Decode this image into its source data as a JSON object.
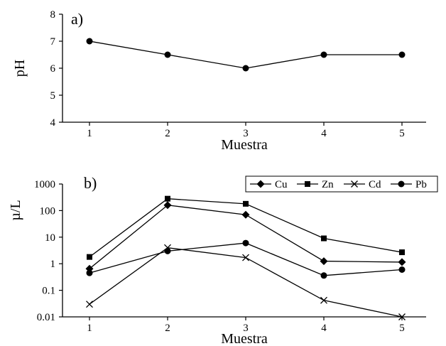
{
  "chart_data": [
    {
      "type": "line",
      "panel_label": "a)",
      "xlabel": "Muestra",
      "ylabel": "pH",
      "x": [
        1,
        2,
        3,
        4,
        5
      ],
      "ylim": [
        4,
        8
      ],
      "yticks": [
        4,
        5,
        6,
        7,
        8
      ],
      "grid": false,
      "series": [
        {
          "name": "",
          "marker": "circle",
          "values": [
            7.0,
            6.5,
            6.0,
            6.5,
            6.5
          ]
        }
      ]
    },
    {
      "type": "line",
      "panel_label": "b)",
      "xlabel": "Muestra",
      "ylabel": "µ/L",
      "x": [
        1,
        2,
        3,
        4,
        5
      ],
      "yscale": "log",
      "ylim": [
        0.01,
        1000
      ],
      "yticks": [
        0.01,
        0.1,
        1,
        10,
        100,
        1000
      ],
      "ytick_labels": [
        "0.01",
        "0.1",
        "1",
        "10",
        "100",
        "1000"
      ],
      "grid": false,
      "legend_position": "top-right",
      "series": [
        {
          "name": "Cu",
          "marker": "diamond",
          "values": [
            0.65,
            160,
            70,
            1.25,
            1.15
          ]
        },
        {
          "name": "Zn",
          "marker": "square",
          "values": [
            1.8,
            280,
            180,
            9.0,
            2.7
          ]
        },
        {
          "name": "Cd",
          "marker": "x",
          "values": [
            0.03,
            4.0,
            1.7,
            0.042,
            0.01
          ]
        },
        {
          "name": "Pb",
          "marker": "circle",
          "values": [
            0.45,
            3.0,
            6.0,
            0.36,
            0.6
          ]
        }
      ]
    }
  ]
}
